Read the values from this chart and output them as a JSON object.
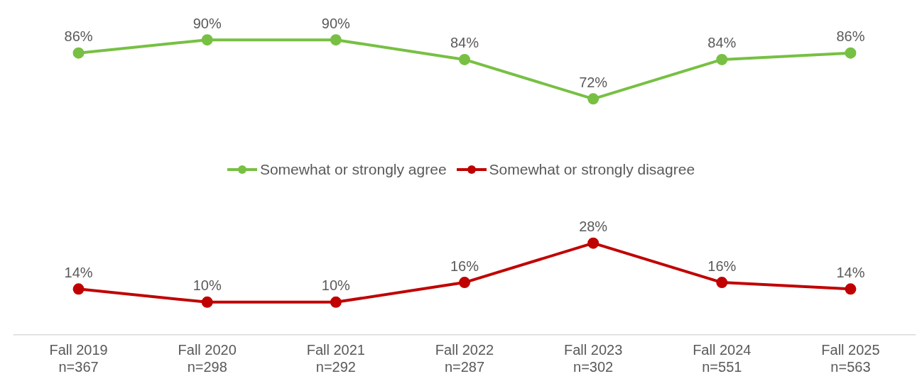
{
  "chart_data": {
    "type": "line",
    "categories": [
      "Fall 2019\nn=367",
      "Fall 2020\nn=298",
      "Fall 2021\nn=292",
      "Fall 2022\nn=287",
      "Fall 2023\nn=302",
      "Fall 2024\nn=551",
      "Fall 2025\nn=563"
    ],
    "series": [
      {
        "name": "Somewhat or strongly agree",
        "color": "#77c043",
        "values": [
          86,
          90,
          90,
          84,
          72,
          84,
          86
        ],
        "value_labels": [
          "86%",
          "90%",
          "90%",
          "84%",
          "72%",
          "84%",
          "86%"
        ]
      },
      {
        "name": "Somewhat or strongly disagree",
        "color": "#c00000",
        "values": [
          14,
          10,
          10,
          16,
          28,
          16,
          14
        ],
        "value_labels": [
          "14%",
          "10%",
          "10%",
          "16%",
          "28%",
          "16%",
          "14%"
        ]
      }
    ],
    "tick_labels": "x",
    "legend": "center",
    "marker": "circle",
    "line_style": "solid",
    "grid": false
  }
}
